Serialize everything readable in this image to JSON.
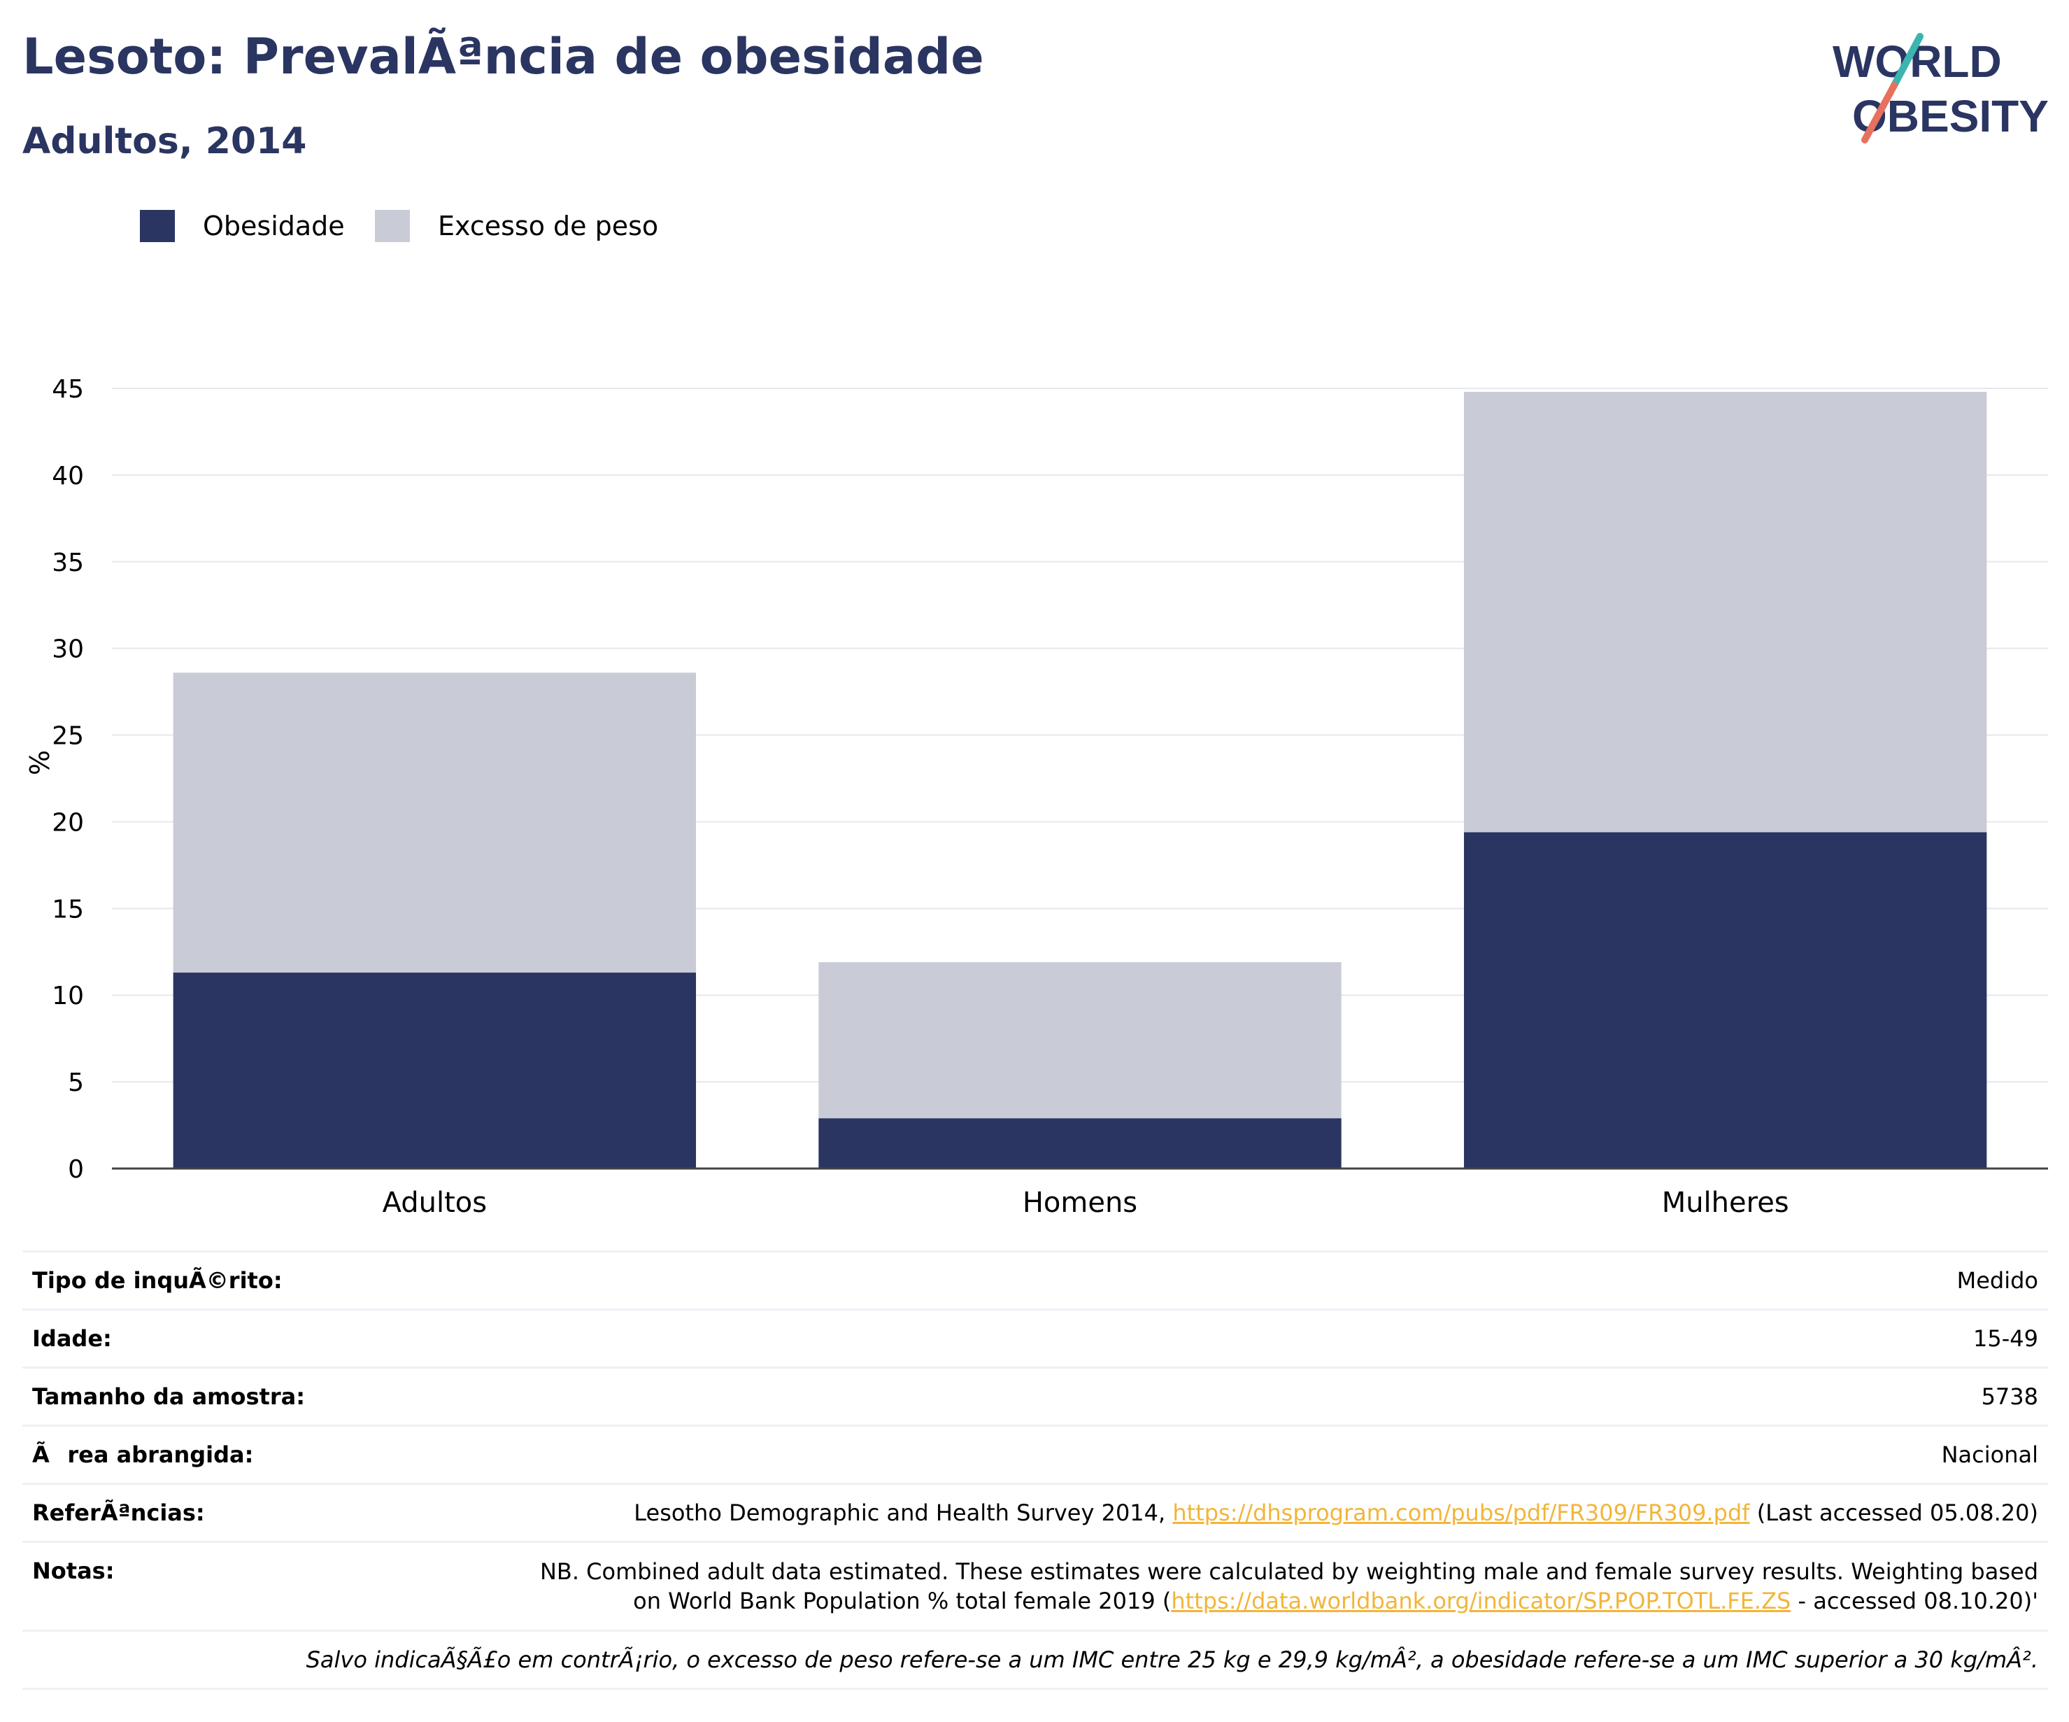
{
  "header": {
    "title": "Lesoto: PrevalÃªncia de obesidade",
    "subtitle": "Adultos, 2014"
  },
  "logo": {
    "line1": "WORLD",
    "line2": "OBESITY",
    "colors": {
      "text": "#2a3561",
      "teal": "#3ab5b0",
      "coral": "#e8705f"
    }
  },
  "legend": {
    "items": [
      {
        "label": "Obesidade",
        "color": "#2a3561"
      },
      {
        "label": "Excesso de peso",
        "color": "#c9cbd6"
      }
    ]
  },
  "chart_data": {
    "type": "bar",
    "stacked": true,
    "categories": [
      "Adultos",
      "Homens",
      "Mulheres"
    ],
    "series": [
      {
        "name": "Obesidade",
        "values": [
          11.3,
          2.9,
          19.4
        ],
        "color": "#2a3561"
      },
      {
        "name": "Excesso de peso",
        "values": [
          17.3,
          9.0,
          25.4
        ],
        "color": "#c9cbd6"
      }
    ],
    "ylabel": "%",
    "ylim": [
      0,
      45
    ],
    "yticks": [
      0,
      5,
      10,
      15,
      20,
      25,
      30,
      35,
      40,
      45
    ],
    "grid": true,
    "legend_position": "top-left"
  },
  "info": {
    "rows": [
      {
        "label": "Tipo de inquÃ©rito:",
        "value": "Medido"
      },
      {
        "label": "Idade:",
        "value": "15-49"
      },
      {
        "label": "Tamanho da amostra:",
        "value": "5738"
      },
      {
        "label": "Ãrea abrangida:",
        "value": "Nacional"
      }
    ],
    "references": {
      "label": "ReferÃªncias:",
      "text_before": "Lesotho Demographic and Health Survey 2014, ",
      "link": "https://dhsprogram.com/pubs/pdf/FR309/FR309.pdf",
      "text_after": " (Last accessed 05.08.20)"
    },
    "notes": {
      "label": "Notas:",
      "line1": "NB. Combined adult data estimated. These estimates were calculated by weighting male and female survey results. Weighting based",
      "line2_before": "on World Bank Population % total female 2019 (",
      "link": "https://data.worldbank.org/indicator/SP.POP.TOTL.FE.ZS",
      "line2_after": " - accessed 08.10.20)'"
    },
    "footnote": "Salvo indicaÃ§Ã£o em contrÃ¡rio, o excesso de peso refere-se a um IMC entre 25 kg e 29,9 kg/mÂ², a obesidade refere-se a um IMC superior a 30 kg/mÂ²."
  }
}
